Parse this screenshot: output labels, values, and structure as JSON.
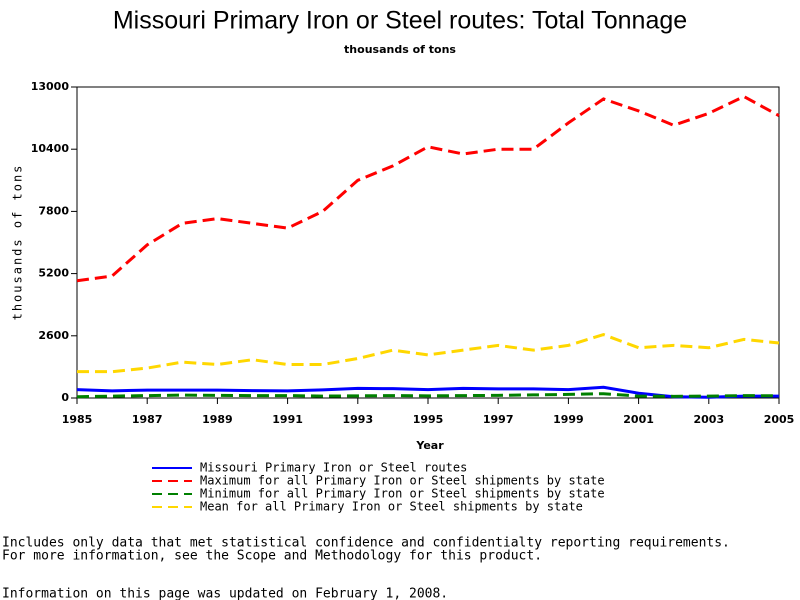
{
  "chart_data": {
    "type": "line",
    "title": "Missouri Primary Iron or Steel routes: Total Tonnage",
    "subtitle": "thousands of tons",
    "x_label": "Year",
    "y_label": "thousands of tons",
    "x": [
      1985,
      1986,
      1987,
      1988,
      1989,
      1990,
      1991,
      1992,
      1993,
      1994,
      1995,
      1996,
      1997,
      1998,
      1999,
      2000,
      2001,
      2002,
      2003,
      2004,
      2005
    ],
    "series": [
      {
        "name": "Missouri Primary Iron or Steel routes",
        "color": "#0000ff",
        "dashed": false,
        "values": [
          350,
          300,
          330,
          330,
          330,
          310,
          300,
          340,
          400,
          390,
          350,
          400,
          380,
          380,
          350,
          450,
          200,
          50,
          30,
          80,
          80
        ]
      },
      {
        "name": "Maximum for all Primary Iron or Steel shipments by state",
        "color": "#ff0000",
        "dashed": true,
        "values": [
          4900,
          5100,
          6400,
          7300,
          7500,
          7300,
          7100,
          7800,
          9100,
          9700,
          10500,
          10200,
          10400,
          10400,
          11500,
          12500,
          12000,
          11400,
          11900,
          12600,
          11800
        ]
      },
      {
        "name": "Minimum for all Primary Iron or Steel shipments by state",
        "color": "#008000",
        "dashed": true,
        "values": [
          50,
          80,
          100,
          120,
          110,
          100,
          100,
          80,
          90,
          100,
          90,
          100,
          110,
          130,
          150,
          180,
          80,
          70,
          80,
          100,
          90
        ]
      },
      {
        "name": "Mean for all Primary Iron or Steel shipments by state",
        "color": "#ffd700",
        "dashed": true,
        "values": [
          1100,
          1100,
          1250,
          1500,
          1400,
          1600,
          1400,
          1400,
          1650,
          2000,
          1800,
          2000,
          2200,
          2000,
          2200,
          2650,
          2100,
          2200,
          2100,
          2450,
          2300
        ]
      }
    ],
    "xlim": [
      1985,
      2005
    ],
    "xticks": [
      1985,
      1987,
      1989,
      1991,
      1993,
      1995,
      1997,
      1999,
      2001,
      2003,
      2005
    ],
    "ylim": [
      0,
      13000
    ],
    "yticks": [
      0,
      2600,
      5200,
      7800,
      10400,
      13000
    ],
    "notes": [
      "Includes only data that met statistical confidence and confidentialty reporting requirements.",
      "For more information, see the Scope and Methodology for this product.",
      "Information on this page was updated on February 1, 2008."
    ]
  }
}
